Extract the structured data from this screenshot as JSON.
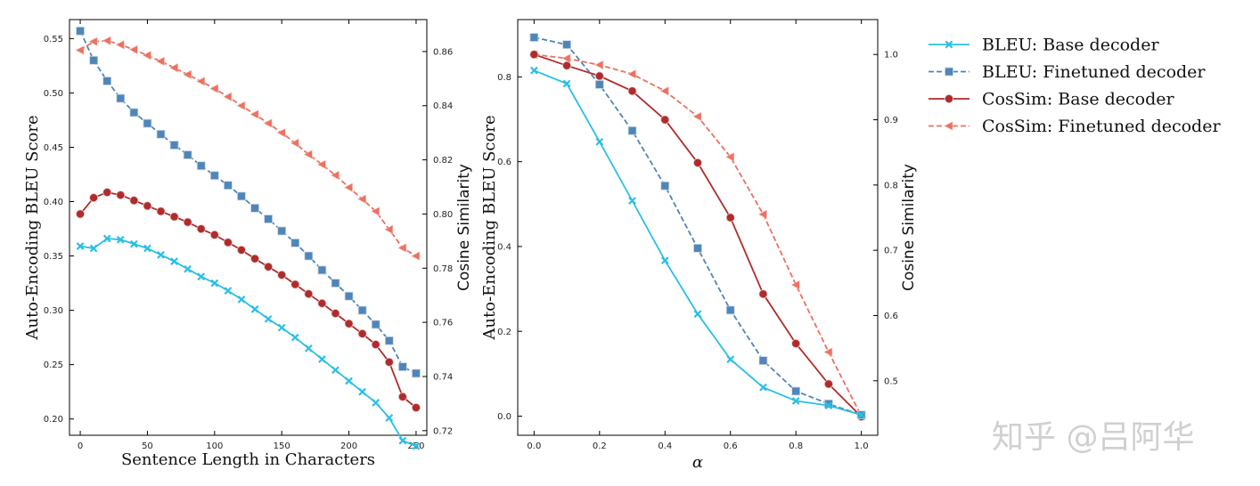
{
  "colors": {
    "bleu_base": "#29bfe6",
    "bleu_ft": "#4f86b9",
    "cos_base": "#b02c2c",
    "cos_ft": "#ec7160"
  },
  "legend": [
    {
      "label": "BLEU: Base decoder",
      "series": "bleu_base"
    },
    {
      "label": "BLEU: Finetuned decoder",
      "series": "bleu_ft"
    },
    {
      "label": "CosSim: Base decoder",
      "series": "cos_base"
    },
    {
      "label": "CosSim: Finetuned decoder",
      "series": "cos_ft"
    }
  ],
  "watermark": "知乎 @吕阿华",
  "chart_data": [
    {
      "type": "line",
      "xlabel": "Sentence Length in Characters",
      "ylabel": "Auto-Encoding BLEU Score",
      "y2label": "Cosine Similarity",
      "xlim": [
        -8,
        258
      ],
      "ylim": [
        0.185,
        0.5675
      ],
      "y2lim": [
        0.7183,
        0.8718
      ],
      "xticks": [
        0,
        50,
        100,
        150,
        200,
        250
      ],
      "yticks": [
        0.2,
        0.25,
        0.3,
        0.35,
        0.4,
        0.45,
        0.5,
        0.55
      ],
      "y2ticks": [
        0.72,
        0.74,
        0.76,
        0.78,
        0.8,
        0.82,
        0.84,
        0.86
      ],
      "x": [
        0,
        10,
        20,
        30,
        40,
        50,
        60,
        70,
        80,
        90,
        100,
        110,
        120,
        130,
        140,
        150,
        160,
        170,
        180,
        190,
        200,
        210,
        220,
        230,
        240,
        250
      ],
      "series": [
        {
          "key": "bleu_base",
          "axis": "left",
          "marker": "x",
          "dash": false,
          "values": [
            0.359,
            0.357,
            0.366,
            0.365,
            0.361,
            0.357,
            0.351,
            0.345,
            0.338,
            0.331,
            0.325,
            0.318,
            0.31,
            0.301,
            0.292,
            0.284,
            0.275,
            0.265,
            0.255,
            0.245,
            0.235,
            0.225,
            0.215,
            0.201,
            0.18,
            0.175
          ]
        },
        {
          "key": "bleu_ft",
          "axis": "left",
          "marker": "square",
          "dash": true,
          "values": [
            0.557,
            0.53,
            0.511,
            0.495,
            0.482,
            0.472,
            0.462,
            0.452,
            0.443,
            0.433,
            0.424,
            0.415,
            0.405,
            0.394,
            0.384,
            0.373,
            0.362,
            0.35,
            0.337,
            0.325,
            0.313,
            0.3,
            0.287,
            0.272,
            0.248,
            0.242
          ]
        },
        {
          "key": "cos_base",
          "axis": "right",
          "marker": "circle",
          "dash": false,
          "values": [
            0.8,
            0.806,
            0.808,
            0.807,
            0.805,
            0.803,
            0.801,
            0.799,
            0.797,
            0.7945,
            0.7923,
            0.7895,
            0.7867,
            0.7835,
            0.7805,
            0.7775,
            0.774,
            0.7705,
            0.767,
            0.7633,
            0.7595,
            0.7558,
            0.7518,
            0.7453,
            0.7325,
            0.7285
          ]
        },
        {
          "key": "cos_ft",
          "axis": "right",
          "marker": "triangle",
          "dash": true,
          "values": [
            0.8605,
            0.8637,
            0.864,
            0.8625,
            0.8607,
            0.8586,
            0.8564,
            0.854,
            0.8515,
            0.849,
            0.8463,
            0.8433,
            0.84,
            0.8368,
            0.8335,
            0.83,
            0.8262,
            0.822,
            0.8183,
            0.8143,
            0.8098,
            0.8055,
            0.801,
            0.7943,
            0.7875,
            0.7845
          ]
        }
      ]
    },
    {
      "type": "line",
      "xlabel": "α",
      "ylabel": "Auto-Encoding BLEU Score",
      "y2label": "Cosine Similarity",
      "xlim": [
        -0.05,
        1.05
      ],
      "ylim": [
        -0.045,
        0.935
      ],
      "y2lim": [
        0.4165,
        1.0535
      ],
      "xticks": [
        0.0,
        0.2,
        0.4,
        0.6,
        0.8,
        1.0
      ],
      "yticks": [
        0.0,
        0.2,
        0.4,
        0.6,
        0.8
      ],
      "y2ticks": [
        0.5,
        0.6,
        0.7,
        0.8,
        0.9,
        1.0
      ],
      "x": [
        0.0,
        0.1,
        0.2,
        0.3,
        0.4,
        0.5,
        0.6,
        0.7,
        0.8,
        0.9,
        1.0
      ],
      "series": [
        {
          "key": "bleu_base",
          "axis": "left",
          "marker": "x",
          "dash": false,
          "values": [
            0.815,
            0.784,
            0.647,
            0.508,
            0.367,
            0.241,
            0.134,
            0.068,
            0.036,
            0.025,
            0.003
          ]
        },
        {
          "key": "bleu_ft",
          "axis": "left",
          "marker": "square",
          "dash": true,
          "values": [
            0.893,
            0.876,
            0.782,
            0.673,
            0.543,
            0.396,
            0.25,
            0.131,
            0.059,
            0.029,
            0.003
          ]
        },
        {
          "key": "cos_base",
          "axis": "right",
          "marker": "circle",
          "dash": false,
          "values": [
            1.0,
            0.983,
            0.967,
            0.944,
            0.9,
            0.834,
            0.75,
            0.633,
            0.557,
            0.495,
            0.445
          ]
        },
        {
          "key": "cos_ft",
          "axis": "right",
          "marker": "triangle",
          "dash": true,
          "values": [
            1.0,
            0.994,
            0.984,
            0.97,
            0.944,
            0.905,
            0.843,
            0.755,
            0.647,
            0.544,
            0.446
          ]
        }
      ]
    }
  ]
}
